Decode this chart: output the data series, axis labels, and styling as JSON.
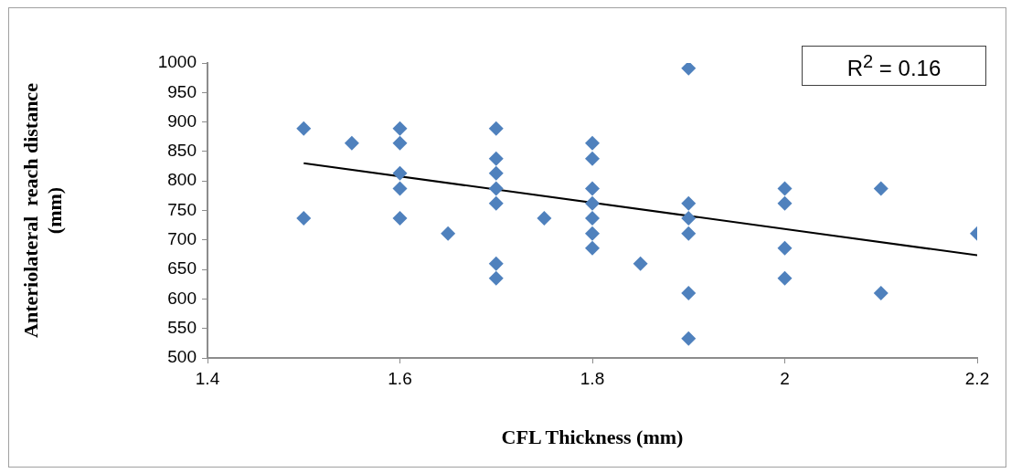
{
  "chart_data": {
    "type": "scatter",
    "xlabel": "CFL Thickness (mm)",
    "ylabel": "Anteriolateral  reach distance\n(mm)",
    "xlim": [
      1.4,
      2.2
    ],
    "xticks": [
      1.4,
      1.6,
      1.8,
      2,
      2.2
    ],
    "ylim": [
      500,
      1000
    ],
    "yticks": [
      500,
      550,
      600,
      650,
      700,
      750,
      800,
      850,
      900,
      950,
      1000
    ],
    "grid": false,
    "legend": false,
    "marker": "diamond",
    "annotations": [
      "R$^{2}$ = 0.16"
    ],
    "series": [
      {
        "type": "scatter",
        "color": "#4f81bd",
        "x": [
          1.5,
          1.5,
          1.55,
          1.6,
          1.6,
          1.6,
          1.6,
          1.6,
          1.65,
          1.7,
          1.7,
          1.7,
          1.7,
          1.7,
          1.7,
          1.7,
          1.75,
          1.8,
          1.8,
          1.8,
          1.8,
          1.8,
          1.8,
          1.8,
          1.85,
          1.9,
          1.9,
          1.9,
          1.9,
          1.9,
          1.9,
          2,
          2,
          2,
          2,
          2.1,
          2.1,
          2.2
        ],
        "values": [
          889,
          737,
          864,
          889,
          864,
          813,
          787,
          737,
          711,
          889,
          838,
          813,
          787,
          762,
          660,
          635,
          737,
          864,
          838,
          787,
          762,
          737,
          711,
          686,
          660,
          991,
          762,
          737,
          711,
          610,
          533,
          787,
          762,
          686,
          635,
          787,
          610,
          711
        ]
      },
      {
        "type": "line",
        "color": "#000000",
        "marker": "none",
        "x": [
          1.5,
          2.2
        ],
        "values": [
          830,
          674
        ]
      }
    ]
  }
}
